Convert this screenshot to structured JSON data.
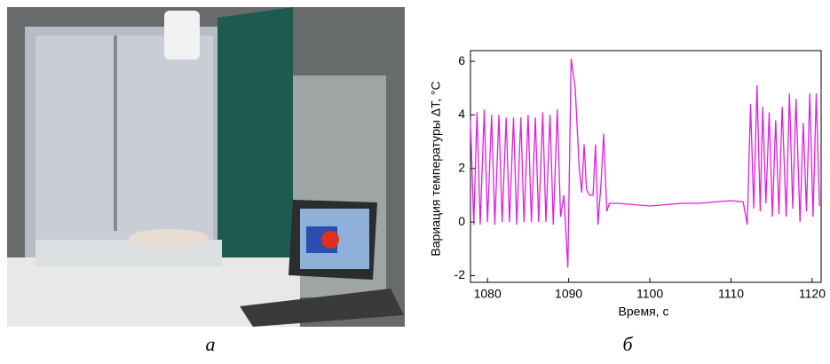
{
  "chart_data": {
    "type": "line",
    "xlabel": "Время, с",
    "ylabel": "Вариация температуры ΔT, °C",
    "color": "#e01ee0",
    "x": [
      1077.9,
      1078.3,
      1078.7,
      1079.1,
      1079.6,
      1080.0,
      1080.5,
      1080.9,
      1081.4,
      1081.8,
      1082.3,
      1082.7,
      1083.2,
      1083.6,
      1084.1,
      1084.5,
      1085.0,
      1085.4,
      1085.9,
      1086.3,
      1086.8,
      1087.2,
      1087.7,
      1088.1,
      1088.6,
      1089.0,
      1089.4,
      1089.9,
      1090.3,
      1090.8,
      1091.3,
      1091.6,
      1091.9,
      1092.2,
      1092.6,
      1093.0,
      1093.3,
      1093.6,
      1094.0,
      1094.3,
      1094.7,
      1095.0,
      1096,
      1098,
      1100,
      1102,
      1104,
      1106,
      1108,
      1110,
      1111.5,
      1112.0,
      1112.4,
      1112.8,
      1113.2,
      1113.6,
      1113.9,
      1114.3,
      1114.7,
      1115.1,
      1115.5,
      1115.9,
      1116.3,
      1116.8,
      1117.2,
      1117.6,
      1118.0,
      1118.5,
      1118.9,
      1119.3,
      1119.7,
      1120.1,
      1120.5,
      1120.9
    ],
    "values": [
      3.8,
      -0.1,
      4.1,
      -0.1,
      4.2,
      0.0,
      4.0,
      -0.1,
      4.0,
      0.0,
      3.9,
      0.0,
      3.9,
      -0.1,
      3.9,
      0.0,
      4.0,
      0.0,
      3.9,
      0.0,
      4.1,
      0.0,
      4.0,
      -0.1,
      4.2,
      0.2,
      1.0,
      -1.7,
      6.1,
      5.0,
      2.0,
      1.1,
      2.9,
      1.2,
      1.0,
      1.0,
      2.9,
      -0.1,
      1.5,
      3.3,
      0.4,
      0.7,
      0.7,
      0.65,
      0.6,
      0.65,
      0.7,
      0.7,
      0.75,
      0.8,
      0.75,
      -0.1,
      4.4,
      0.5,
      5.1,
      0.4,
      4.3,
      0.7,
      4.1,
      0.2,
      3.8,
      0.3,
      4.3,
      0.2,
      4.8,
      0.5,
      4.6,
      0.0,
      3.7,
      0.4,
      4.8,
      0.2,
      4.8,
      0.6
    ],
    "xlim": [
      1077.9,
      1121.1
    ],
    "xticks": [
      1080,
      1090,
      1100,
      1110,
      1120
    ],
    "ylim": [
      -2.25,
      6.4
    ],
    "yticks": [
      -2,
      0,
      2,
      4,
      6
    ]
  },
  "captions": [
    "а",
    "б"
  ]
}
